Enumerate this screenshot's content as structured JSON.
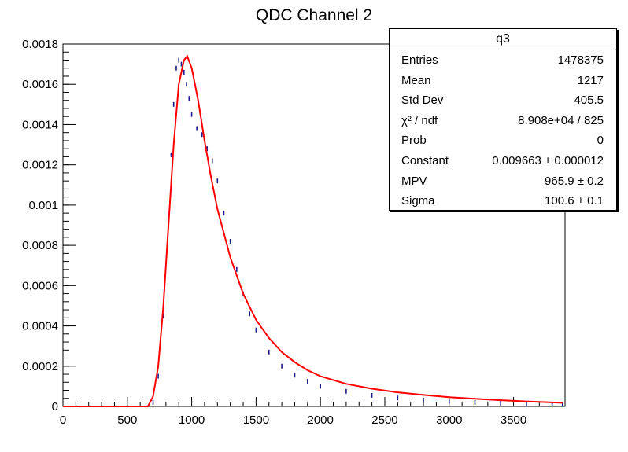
{
  "chart_data": {
    "type": "line",
    "title": "QDC Channel 2",
    "xlabel": "",
    "ylabel": "",
    "xlim": [
      0,
      3900
    ],
    "ylim": [
      0,
      0.0018
    ],
    "x_ticks": [
      0,
      500,
      1000,
      1500,
      2000,
      2500,
      3000,
      3500
    ],
    "x_tick_labels": [
      "0",
      "500",
      "1000",
      "1500",
      "2000",
      "2500",
      "3000",
      "3500"
    ],
    "y_ticks": [
      0,
      0.0002,
      0.0004,
      0.0006,
      0.0008,
      0.001,
      0.0012,
      0.0014,
      0.0016,
      0.0018
    ],
    "y_tick_labels": [
      "0",
      "0.0002",
      "0.0004",
      "0.0006",
      "0.0008",
      "0.001",
      "0.0012",
      "0.0014",
      "0.0016",
      "0.0018"
    ],
    "series": [
      {
        "name": "data",
        "color": "#1a1a8c",
        "style": "markers",
        "x": [
          700,
          740,
          780,
          820,
          840,
          860,
          880,
          900,
          920,
          940,
          960,
          980,
          1000,
          1040,
          1080,
          1120,
          1160,
          1200,
          1250,
          1300,
          1350,
          1400,
          1450,
          1500,
          1600,
          1700,
          1800,
          1900,
          2000,
          2200,
          2400,
          2600,
          2800,
          3000,
          3200,
          3400,
          3600,
          3800,
          3880
        ],
        "y": [
          2e-05,
          0.00015,
          0.00045,
          0.0009,
          0.00125,
          0.0015,
          0.00168,
          0.00172,
          0.0017,
          0.00166,
          0.0016,
          0.00153,
          0.00145,
          0.00138,
          0.00135,
          0.00128,
          0.00122,
          0.00112,
          0.00096,
          0.00082,
          0.00068,
          0.00056,
          0.00046,
          0.00038,
          0.00027,
          0.0002,
          0.000155,
          0.000125,
          0.0001,
          7.5e-05,
          5.5e-05,
          4.2e-05,
          3.2e-05,
          2.5e-05,
          2e-05,
          1.6e-05,
          1.3e-05,
          1e-05,
          9e-06
        ]
      },
      {
        "name": "fit",
        "color": "#ff0000",
        "style": "line",
        "x": [
          0,
          660,
          700,
          740,
          780,
          820,
          860,
          900,
          940,
          965,
          1000,
          1050,
          1100,
          1150,
          1200,
          1300,
          1400,
          1500,
          1600,
          1700,
          1800,
          1900,
          2000,
          2200,
          2400,
          2600,
          2800,
          3000,
          3200,
          3400,
          3600,
          3800,
          3880
        ],
        "y": [
          0,
          0,
          5e-05,
          0.0002,
          0.0005,
          0.0009,
          0.0013,
          0.0016,
          0.00172,
          0.00174,
          0.00168,
          0.00152,
          0.00132,
          0.00114,
          0.00098,
          0.00074,
          0.00056,
          0.00043,
          0.00034,
          0.00027,
          0.00022,
          0.00018,
          0.00015,
          0.000112,
          8.8e-05,
          7e-05,
          5.7e-05,
          4.6e-05,
          3.8e-05,
          3.1e-05,
          2.5e-05,
          2e-05,
          1.8e-05
        ]
      }
    ]
  },
  "stats": {
    "title": "q3",
    "rows": [
      {
        "label": "Entries",
        "value": "1478375"
      },
      {
        "label": "Mean",
        "value": "1217"
      },
      {
        "label": "Std Dev",
        "value": "405.5"
      },
      {
        "label": "χ² / ndf",
        "value": "8.908e+04 / 825"
      },
      {
        "label": "Prob",
        "value": "0"
      },
      {
        "label": "Constant",
        "value": "0.009663 ± 0.000012"
      },
      {
        "label": "MPV",
        "value": "965.9 ± 0.2"
      },
      {
        "label": "Sigma",
        "value": "100.6 ± 0.1"
      }
    ]
  }
}
